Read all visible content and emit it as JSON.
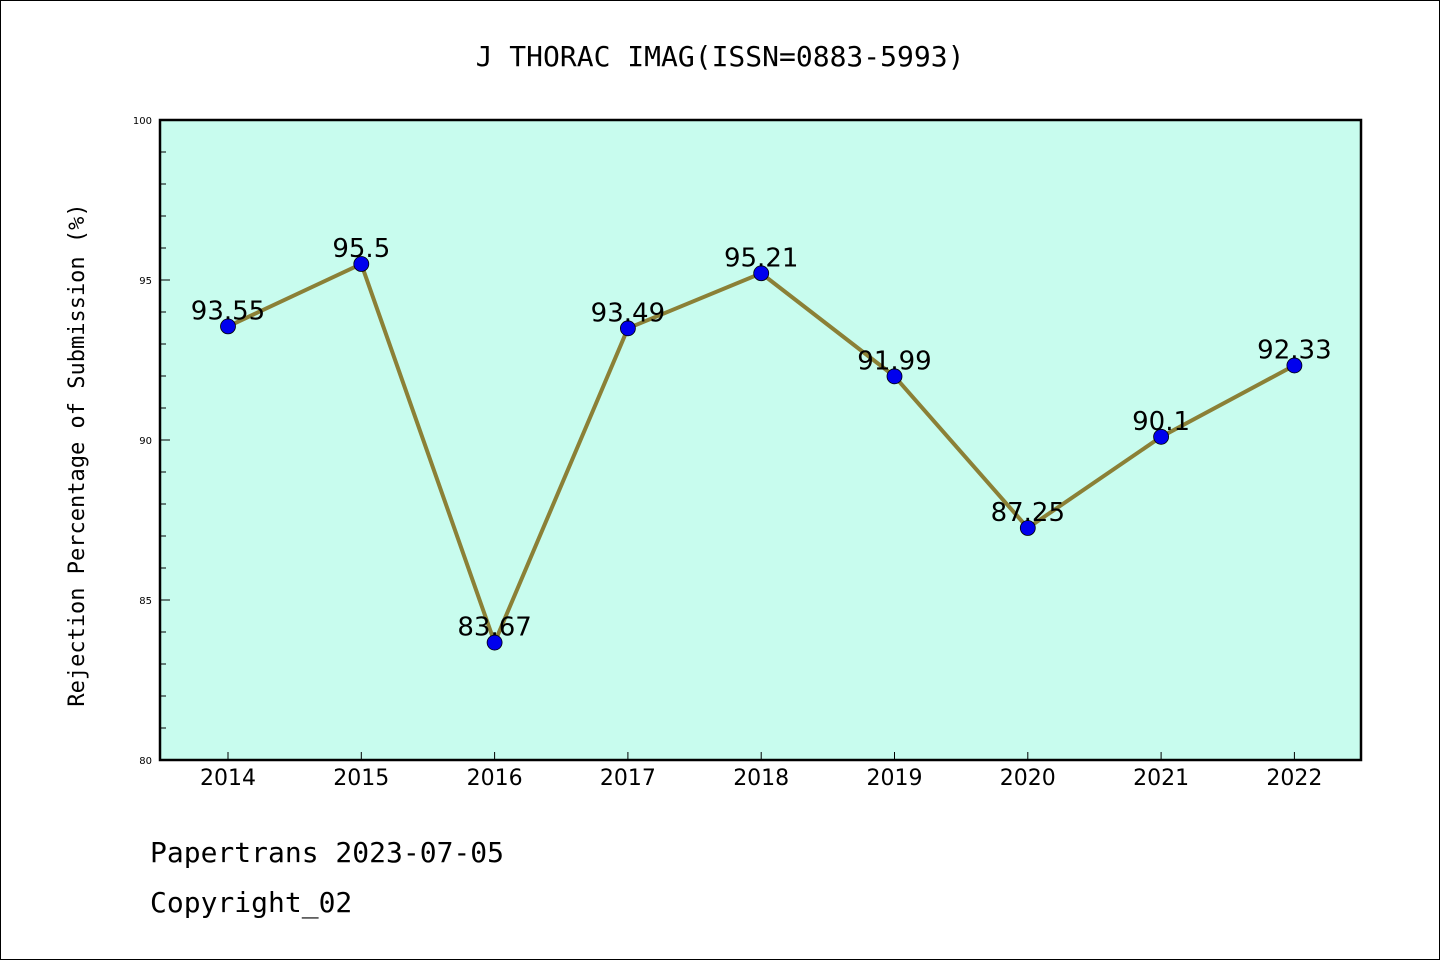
{
  "chart_data": {
    "type": "line",
    "title": "J THORAC IMAG(ISSN=0883-5993)",
    "xlabel": "",
    "ylabel": "Rejection Percentage of Submission (%)",
    "categories": [
      "2014",
      "2015",
      "2016",
      "2017",
      "2018",
      "2019",
      "2020",
      "2021",
      "2022"
    ],
    "values": [
      93.55,
      95.5,
      83.67,
      93.49,
      95.21,
      91.99,
      87.25,
      90.1,
      92.33
    ],
    "data_labels": [
      "93.55",
      "95.5",
      "83.67",
      "93.49",
      "95.21",
      "91.99",
      "87.25",
      "90.1",
      "92.33"
    ],
    "ylim": [
      80,
      100
    ],
    "yticks": [
      "80",
      "85",
      "90",
      "95",
      "100"
    ],
    "grid": false,
    "colors": {
      "plot_background": "#c8fcee",
      "line": "#8b8036",
      "marker": "#0000ee"
    }
  },
  "footer": {
    "line1": "Papertrans 2023-07-05",
    "line2": "Copyright_02"
  }
}
